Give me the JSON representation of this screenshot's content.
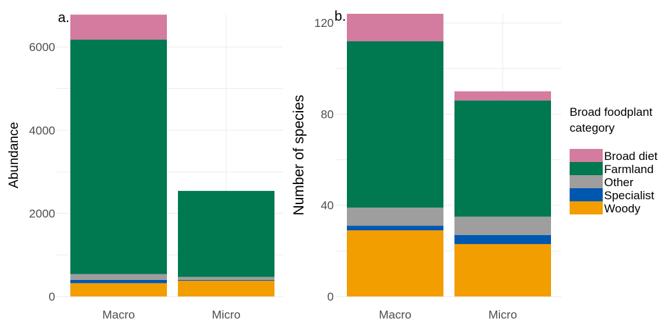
{
  "chart_data": [
    {
      "type": "bar",
      "stacked": true,
      "panel_label": "a.",
      "title": "",
      "xlabel": "",
      "ylabel": "Abundance",
      "categories": [
        "Macro",
        "Micro"
      ],
      "ylim": [
        0,
        6800
      ],
      "yticks": [
        0,
        2000,
        4000,
        6000
      ],
      "series": [
        {
          "name": "Woody",
          "values": [
            320,
            380
          ]
        },
        {
          "name": "Specialist",
          "values": [
            80,
            20
          ]
        },
        {
          "name": "Other",
          "values": [
            140,
            70
          ]
        },
        {
          "name": "Farmland",
          "values": [
            5640,
            2070
          ]
        },
        {
          "name": "Broad diet",
          "values": [
            600,
            0
          ]
        }
      ],
      "grid": true
    },
    {
      "type": "bar",
      "stacked": true,
      "panel_label": "b.",
      "title": "",
      "xlabel": "",
      "ylabel": "Number of species",
      "categories": [
        "Macro",
        "Micro"
      ],
      "ylim": [
        0,
        124
      ],
      "yticks": [
        0,
        40,
        80,
        120
      ],
      "series": [
        {
          "name": "Woody",
          "values": [
            29,
            23
          ]
        },
        {
          "name": "Specialist",
          "values": [
            2,
            4
          ]
        },
        {
          "name": "Other",
          "values": [
            8,
            8
          ]
        },
        {
          "name": "Farmland",
          "values": [
            73,
            51
          ]
        },
        {
          "name": "Broad diet",
          "values": [
            12,
            4
          ]
        }
      ],
      "grid": true
    }
  ],
  "legend": {
    "title_line1": "Broad foodplant",
    "title_line2": "category",
    "placement": "right",
    "items": [
      {
        "label": "Broad diet",
        "color": "#d47ba0"
      },
      {
        "label": "Farmland",
        "color": "#007850"
      },
      {
        "label": "Other",
        "color": "#9e9e9e"
      },
      {
        "label": "Specialist",
        "color": "#0057b0"
      },
      {
        "label": "Woody",
        "color": "#f29d00"
      }
    ]
  }
}
